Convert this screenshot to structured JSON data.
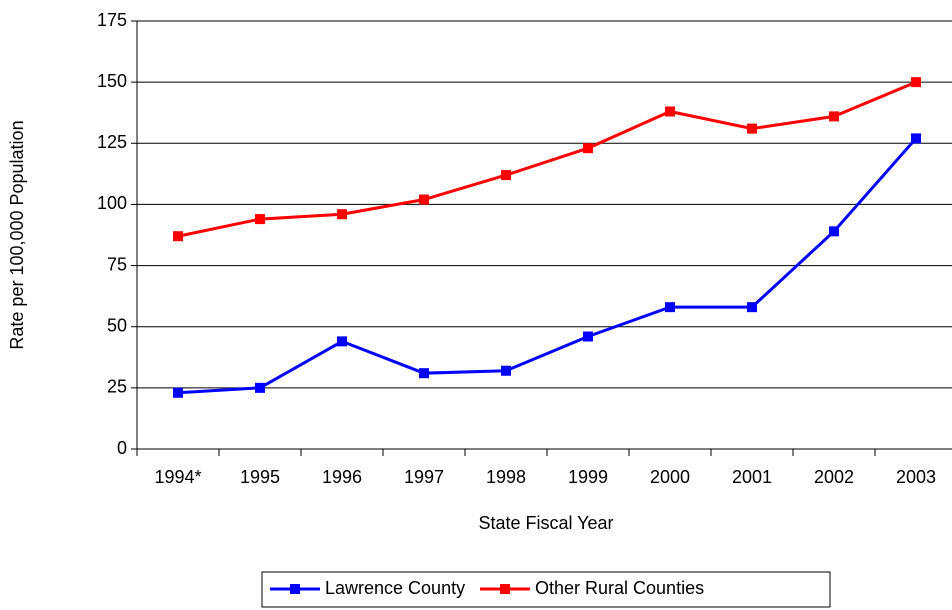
{
  "chart_data": {
    "type": "line",
    "x_label": "State Fiscal Year",
    "y_label": "Rate per 100,000 Population",
    "categories": [
      "1994*",
      "1995",
      "1996",
      "1997",
      "1998",
      "1999",
      "2000",
      "2001",
      "2002",
      "2003"
    ],
    "series": [
      {
        "name": "Lawrence County",
        "color": "#0000ff",
        "values": [
          23,
          25,
          44,
          31,
          32,
          46,
          58,
          58,
          89,
          127
        ]
      },
      {
        "name": "Other Rural Counties",
        "color": "#ff0000",
        "values": [
          87,
          94,
          96,
          102,
          112,
          123,
          138,
          131,
          136,
          150
        ]
      }
    ],
    "ylim": [
      0,
      175
    ],
    "yticks": [
      0,
      25,
      50,
      75,
      100,
      125,
      150,
      175
    ],
    "grid": true
  }
}
